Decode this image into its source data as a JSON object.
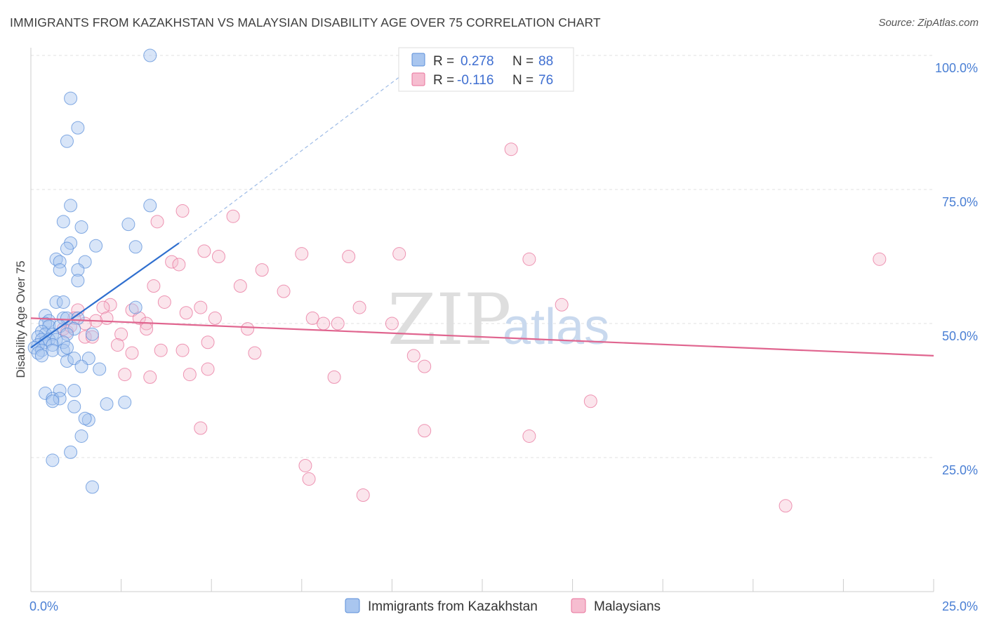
{
  "title": "IMMIGRANTS FROM KAZAKHSTAN VS MALAYSIAN DISABILITY AGE OVER 75 CORRELATION CHART",
  "source": "Source: ZipAtlas.com",
  "watermark": {
    "zip": "ZIP",
    "atlas": "atlas"
  },
  "colors": {
    "blue": "#5b8fd9",
    "blue_fill": "#a9c6ef",
    "pink": "#e8739b",
    "pink_fill": "#f6bdd0",
    "tick_text": "#4a7fd4"
  },
  "legend": {
    "r_label": "R =",
    "n_label": "N =",
    "series": [
      {
        "name": "Immigrants from Kazakhstan",
        "r": "0.278",
        "n": "88"
      },
      {
        "name": "Malaysians",
        "r": "-0.116",
        "n": "76"
      }
    ]
  },
  "chart_data": {
    "type": "scatter",
    "title": "IMMIGRANTS FROM KAZAKHSTAN VS MALAYSIAN DISABILITY AGE OVER 75 CORRELATION CHART",
    "xlabel": "",
    "ylabel": "Disability Age Over 75",
    "xlim": [
      0,
      25
    ],
    "ylim": [
      0,
      100
    ],
    "x_tick_labels": [
      {
        "value": 0,
        "label": "0.0%"
      },
      {
        "value": 25,
        "label": "25.0%"
      }
    ],
    "y_tick_labels": [
      {
        "value": 25,
        "label": "25.0%"
      },
      {
        "value": 50,
        "label": "50.0%"
      },
      {
        "value": 75,
        "label": "75.0%"
      },
      {
        "value": 100,
        "label": "100.0%"
      }
    ],
    "grid": true,
    "legend_position": "top-center",
    "series": [
      {
        "name": "Immigrants from Kazakhstan",
        "color": "#5b8fd9",
        "trend": {
          "x0": 0.0,
          "y0": 45.5,
          "x1": 4.1,
          "y1": 65.0,
          "dashed_to_x": 10.8,
          "dashed_to_y": 99.0
        },
        "points": [
          [
            3.3,
            100.0
          ],
          [
            1.1,
            92.0
          ],
          [
            1.3,
            86.5
          ],
          [
            1.0,
            84.0
          ],
          [
            1.1,
            72.0
          ],
          [
            3.3,
            72.0
          ],
          [
            0.9,
            69.0
          ],
          [
            2.7,
            68.5
          ],
          [
            1.4,
            68.0
          ],
          [
            1.1,
            65.0
          ],
          [
            1.8,
            64.5
          ],
          [
            1.0,
            64.0
          ],
          [
            2.9,
            64.3
          ],
          [
            0.7,
            62.0
          ],
          [
            0.8,
            61.5
          ],
          [
            1.5,
            61.5
          ],
          [
            0.8,
            60.0
          ],
          [
            1.3,
            60.0
          ],
          [
            1.3,
            58.0
          ],
          [
            0.7,
            54.0
          ],
          [
            0.9,
            54.0
          ],
          [
            2.9,
            53.0
          ],
          [
            0.4,
            51.5
          ],
          [
            0.9,
            51.0
          ],
          [
            1.0,
            51.0
          ],
          [
            1.3,
            51.0
          ],
          [
            0.5,
            50.5
          ],
          [
            0.4,
            50.0
          ],
          [
            0.5,
            49.5
          ],
          [
            0.8,
            49.5
          ],
          [
            1.2,
            49.0
          ],
          [
            0.3,
            48.5
          ],
          [
            0.4,
            48.0
          ],
          [
            0.6,
            48.0
          ],
          [
            1.0,
            48.0
          ],
          [
            1.7,
            48.0
          ],
          [
            0.2,
            47.5
          ],
          [
            0.3,
            47.0
          ],
          [
            0.5,
            47.0
          ],
          [
            0.7,
            47.0
          ],
          [
            0.4,
            46.5
          ],
          [
            0.2,
            46.0
          ],
          [
            0.6,
            46.0
          ],
          [
            0.9,
            46.5
          ],
          [
            0.1,
            45.5
          ],
          [
            0.3,
            45.0
          ],
          [
            0.6,
            45.0
          ],
          [
            0.9,
            45.0
          ],
          [
            1.0,
            45.5
          ],
          [
            0.2,
            44.5
          ],
          [
            0.3,
            44.0
          ],
          [
            1.0,
            43.0
          ],
          [
            1.6,
            43.5
          ],
          [
            1.2,
            43.5
          ],
          [
            1.4,
            42.0
          ],
          [
            1.9,
            41.5
          ],
          [
            0.8,
            37.5
          ],
          [
            0.4,
            37.0
          ],
          [
            1.2,
            37.5
          ],
          [
            0.6,
            36.0
          ],
          [
            0.8,
            36.0
          ],
          [
            0.6,
            35.5
          ],
          [
            2.1,
            35.0
          ],
          [
            2.6,
            35.3
          ],
          [
            1.2,
            34.5
          ],
          [
            1.6,
            32.0
          ],
          [
            1.5,
            32.3
          ],
          [
            1.4,
            29.0
          ],
          [
            1.1,
            26.0
          ],
          [
            0.6,
            24.5
          ],
          [
            1.7,
            19.5
          ]
        ]
      },
      {
        "name": "Malaysians",
        "color": "#e8739b",
        "trend": {
          "x0": 0.0,
          "y0": 51.0,
          "x1": 25.0,
          "y1": 44.0
        },
        "points": [
          [
            13.3,
            82.5
          ],
          [
            4.2,
            71.0
          ],
          [
            5.6,
            70.0
          ],
          [
            3.5,
            69.0
          ],
          [
            4.8,
            63.5
          ],
          [
            7.5,
            63.0
          ],
          [
            8.8,
            62.5
          ],
          [
            10.2,
            63.0
          ],
          [
            23.5,
            62.0
          ],
          [
            5.2,
            62.5
          ],
          [
            13.8,
            62.0
          ],
          [
            3.9,
            61.5
          ],
          [
            4.1,
            61.0
          ],
          [
            6.4,
            60.0
          ],
          [
            3.4,
            57.0
          ],
          [
            5.8,
            57.0
          ],
          [
            7.0,
            56.0
          ],
          [
            3.7,
            54.0
          ],
          [
            2.2,
            53.5
          ],
          [
            2.0,
            53.0
          ],
          [
            2.8,
            52.5
          ],
          [
            4.7,
            53.0
          ],
          [
            9.1,
            53.0
          ],
          [
            14.7,
            53.5
          ],
          [
            1.3,
            52.5
          ],
          [
            4.3,
            52.0
          ],
          [
            3.0,
            51.0
          ],
          [
            5.1,
            51.0
          ],
          [
            7.8,
            51.0
          ],
          [
            2.1,
            51.0
          ],
          [
            1.2,
            51.0
          ],
          [
            1.8,
            50.5
          ],
          [
            8.1,
            50.0
          ],
          [
            8.5,
            50.0
          ],
          [
            10.0,
            50.0
          ],
          [
            1.5,
            50.0
          ],
          [
            3.2,
            50.0
          ],
          [
            3.2,
            49.0
          ],
          [
            6.0,
            49.0
          ],
          [
            0.9,
            49.0
          ],
          [
            1.0,
            48.5
          ],
          [
            2.5,
            48.0
          ],
          [
            1.5,
            47.5
          ],
          [
            1.7,
            47.5
          ],
          [
            2.4,
            46.0
          ],
          [
            4.9,
            46.5
          ],
          [
            3.6,
            45.0
          ],
          [
            4.2,
            45.0
          ],
          [
            6.2,
            44.5
          ],
          [
            2.8,
            44.5
          ],
          [
            10.6,
            44.0
          ],
          [
            10.9,
            42.0
          ],
          [
            4.9,
            41.5
          ],
          [
            4.4,
            40.5
          ],
          [
            2.6,
            40.5
          ],
          [
            3.3,
            40.0
          ],
          [
            8.4,
            40.0
          ],
          [
            15.5,
            35.5
          ],
          [
            4.7,
            30.5
          ],
          [
            10.9,
            30.0
          ],
          [
            13.8,
            29.0
          ],
          [
            7.6,
            23.5
          ],
          [
            7.7,
            21.0
          ],
          [
            9.2,
            18.0
          ],
          [
            20.9,
            16.0
          ],
          [
            1.1,
            49.5
          ]
        ]
      }
    ]
  }
}
